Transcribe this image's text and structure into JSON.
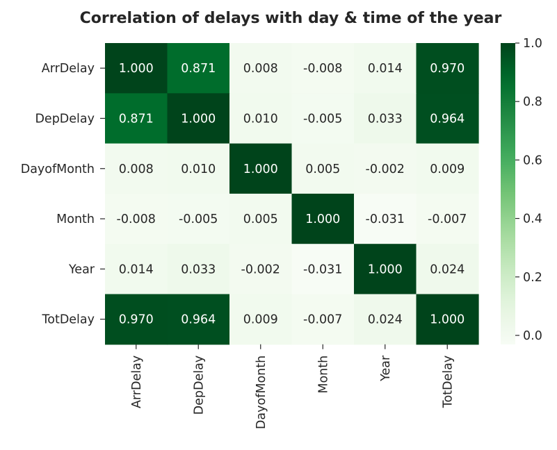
{
  "chart_data": {
    "type": "heatmap",
    "title": "Correlation of delays with day & time of the year",
    "x_categories": [
      "ArrDelay",
      "DepDelay",
      "DayofMonth",
      "Month",
      "Year",
      "TotDelay"
    ],
    "y_categories": [
      "ArrDelay",
      "DepDelay",
      "DayofMonth",
      "Month",
      "Year",
      "TotDelay"
    ],
    "values": [
      [
        1.0,
        0.871,
        0.008,
        -0.008,
        0.014,
        0.97
      ],
      [
        0.871,
        1.0,
        0.01,
        -0.005,
        0.033,
        0.964
      ],
      [
        0.008,
        0.01,
        1.0,
        0.005,
        -0.002,
        0.009
      ],
      [
        -0.008,
        -0.005,
        0.005,
        1.0,
        -0.031,
        -0.007
      ],
      [
        0.014,
        0.033,
        -0.002,
        -0.031,
        1.0,
        0.024
      ],
      [
        0.97,
        0.964,
        0.009,
        -0.007,
        0.024,
        1.0
      ]
    ],
    "cell_labels": [
      [
        "1.000",
        "0.871",
        "0.008",
        "-0.008",
        "0.014",
        "0.970"
      ],
      [
        "0.871",
        "1.000",
        "0.010",
        "-0.005",
        "0.033",
        "0.964"
      ],
      [
        "0.008",
        "0.010",
        "1.000",
        "0.005",
        "-0.002",
        "0.009"
      ],
      [
        "-0.008",
        "-0.005",
        "0.005",
        "1.000",
        "-0.031",
        "-0.007"
      ],
      [
        "0.014",
        "0.033",
        "-0.002",
        "-0.031",
        "1.000",
        "0.024"
      ],
      [
        "0.970",
        "0.964",
        "0.009",
        "-0.007",
        "0.024",
        "1.000"
      ]
    ],
    "colormap": "Greens",
    "color_range": [
      -0.031,
      1.0
    ],
    "colorbar_ticks": [
      0.0,
      0.2,
      0.4,
      0.6,
      0.8,
      1.0
    ],
    "colorbar_tick_labels": [
      "0.0",
      "0.2",
      "0.4",
      "0.6",
      "0.8",
      "1.0"
    ]
  }
}
